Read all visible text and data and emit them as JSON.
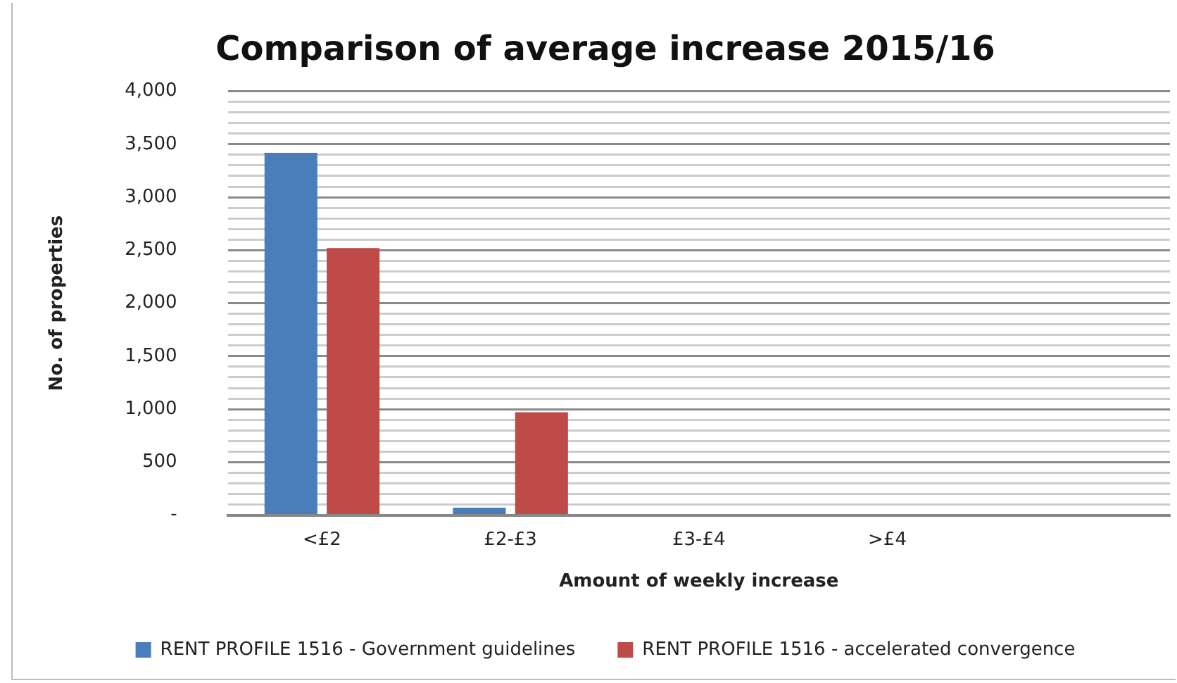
{
  "chart_data": {
    "type": "bar",
    "title": "Comparison of average increase 2015/16",
    "xlabel": "Amount of weekly increase",
    "ylabel": "No. of properties",
    "categories": [
      "<£2",
      "£2-£3",
      "£3-£4",
      ">£4",
      null
    ],
    "series": [
      {
        "name": "RENT PROFILE 1516 - Government guidelines",
        "color": "#4a7ebb",
        "values": [
          3420,
          70,
          0,
          0,
          null
        ]
      },
      {
        "name": "RENT PROFILE 1516 - accelerated convergence",
        "color": "#be4b48",
        "values": [
          2520,
          970,
          0,
          0,
          null
        ]
      }
    ],
    "ylim": [
      0,
      4000
    ],
    "yticks": [
      {
        "value": 0,
        "label": "-"
      },
      {
        "value": 100,
        "label": null
      },
      {
        "value": 200,
        "label": null
      },
      {
        "value": 300,
        "label": null
      },
      {
        "value": 400,
        "label": null
      },
      {
        "value": 500,
        "label": "500"
      },
      {
        "value": 600,
        "label": null
      },
      {
        "value": 700,
        "label": null
      },
      {
        "value": 800,
        "label": null
      },
      {
        "value": 900,
        "label": null
      },
      {
        "value": 1000,
        "label": "1,000"
      },
      {
        "value": 1100,
        "label": null
      },
      {
        "value": 1200,
        "label": null
      },
      {
        "value": 1300,
        "label": null
      },
      {
        "value": 1400,
        "label": null
      },
      {
        "value": 1500,
        "label": "1,500"
      },
      {
        "value": 1600,
        "label": null
      },
      {
        "value": 1700,
        "label": null
      },
      {
        "value": 1800,
        "label": null
      },
      {
        "value": 1900,
        "label": null
      },
      {
        "value": 2000,
        "label": "2,000"
      },
      {
        "value": 2100,
        "label": null
      },
      {
        "value": 2200,
        "label": null
      },
      {
        "value": 2300,
        "label": null
      },
      {
        "value": 2400,
        "label": null
      },
      {
        "value": 2500,
        "label": "2,500"
      },
      {
        "value": 2600,
        "label": null
      },
      {
        "value": 2700,
        "label": null
      },
      {
        "value": 2800,
        "label": null
      },
      {
        "value": 2900,
        "label": null
      },
      {
        "value": 3000,
        "label": "3,000"
      },
      {
        "value": 3100,
        "label": null
      },
      {
        "value": 3200,
        "label": null
      },
      {
        "value": 3300,
        "label": null
      },
      {
        "value": 3400,
        "label": null
      },
      {
        "value": 3500,
        "label": "3,500"
      },
      {
        "value": 3600,
        "label": null
      },
      {
        "value": 3700,
        "label": null
      },
      {
        "value": 3800,
        "label": null
      },
      {
        "value": 3900,
        "label": null
      },
      {
        "value": 4000,
        "label": "4,000"
      }
    ],
    "grid": "y",
    "legend": "bottom"
  }
}
